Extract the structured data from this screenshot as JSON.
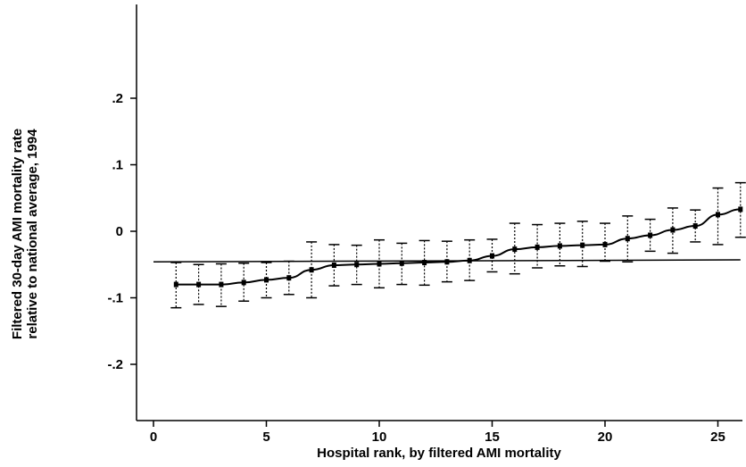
{
  "chart_data": {
    "type": "scatter",
    "title": "",
    "xlabel": "Hospital rank, by filtered AMI mortality",
    "ylabel_lines": [
      "Filtered 30-day AMI mortality rate",
      "relative to national average, 1994"
    ],
    "xlim": [
      0,
      26
    ],
    "ylim": [
      -0.29,
      0.33
    ],
    "xticks": [
      0,
      5,
      10,
      15,
      20,
      25
    ],
    "xtick_labels": [
      "0",
      "5",
      "10",
      "15",
      "20",
      "25"
    ],
    "yticks": [
      0.2,
      0.1,
      0,
      -0.1,
      -0.2
    ],
    "ytick_labels": [
      ".2",
      ".1",
      "0",
      "-.1",
      "-.2"
    ],
    "grid": false,
    "points": [
      {
        "x": 1,
        "y": -0.08,
        "lo": -0.115,
        "hi": -0.047
      },
      {
        "x": 2,
        "y": -0.08,
        "lo": -0.11,
        "hi": -0.05
      },
      {
        "x": 3,
        "y": -0.08,
        "lo": -0.113,
        "hi": -0.049
      },
      {
        "x": 4,
        "y": -0.077,
        "lo": -0.105,
        "hi": -0.048
      },
      {
        "x": 5,
        "y": -0.073,
        "lo": -0.1,
        "hi": -0.047
      },
      {
        "x": 6,
        "y": -0.07,
        "lo": -0.095,
        "hi": -0.045
      },
      {
        "x": 7,
        "y": -0.058,
        "lo": -0.1,
        "hi": -0.016
      },
      {
        "x": 8,
        "y": -0.051,
        "lo": -0.082,
        "hi": -0.02
      },
      {
        "x": 9,
        "y": -0.05,
        "lo": -0.08,
        "hi": -0.021
      },
      {
        "x": 10,
        "y": -0.049,
        "lo": -0.085,
        "hi": -0.013
      },
      {
        "x": 11,
        "y": -0.048,
        "lo": -0.08,
        "hi": -0.018
      },
      {
        "x": 12,
        "y": -0.047,
        "lo": -0.081,
        "hi": -0.014
      },
      {
        "x": 13,
        "y": -0.046,
        "lo": -0.076,
        "hi": -0.015
      },
      {
        "x": 14,
        "y": -0.044,
        "lo": -0.074,
        "hi": -0.013
      },
      {
        "x": 15,
        "y": -0.037,
        "lo": -0.061,
        "hi": -0.012
      },
      {
        "x": 16,
        "y": -0.027,
        "lo": -0.064,
        "hi": 0.012
      },
      {
        "x": 17,
        "y": -0.024,
        "lo": -0.055,
        "hi": 0.01
      },
      {
        "x": 18,
        "y": -0.022,
        "lo": -0.052,
        "hi": 0.012
      },
      {
        "x": 19,
        "y": -0.021,
        "lo": -0.053,
        "hi": 0.015
      },
      {
        "x": 20,
        "y": -0.02,
        "lo": -0.045,
        "hi": 0.012
      },
      {
        "x": 21,
        "y": -0.011,
        "lo": -0.046,
        "hi": 0.023
      },
      {
        "x": 22,
        "y": -0.006,
        "lo": -0.03,
        "hi": 0.018
      },
      {
        "x": 23,
        "y": 0.002,
        "lo": -0.033,
        "hi": 0.035
      },
      {
        "x": 24,
        "y": 0.008,
        "lo": -0.016,
        "hi": 0.032
      },
      {
        "x": 25,
        "y": 0.025,
        "lo": -0.02,
        "hi": 0.065
      },
      {
        "x": 26,
        "y": 0.033,
        "lo": -0.009,
        "hi": 0.073
      }
    ],
    "reference_line": {
      "x_start": 0,
      "x_end": 26,
      "y_start": -0.046,
      "y_end": -0.043
    }
  }
}
